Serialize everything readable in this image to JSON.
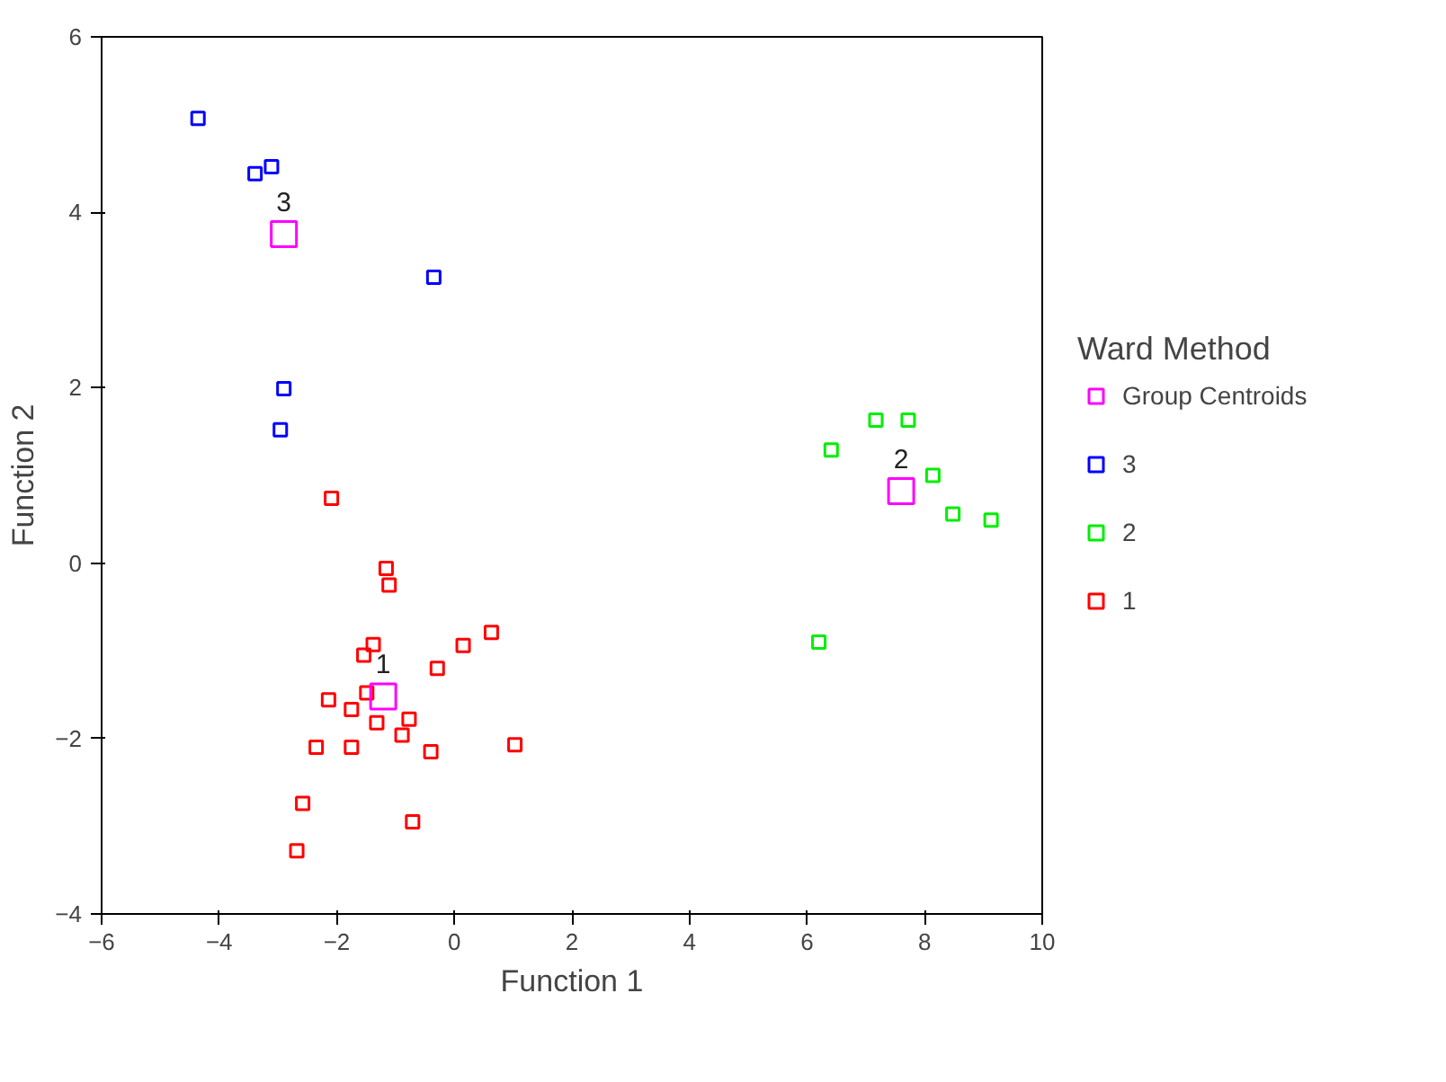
{
  "chart_data": {
    "type": "scatter",
    "xlabel": "Function 1",
    "ylabel": "Function 2",
    "legend_title": "Ward Method",
    "legend": "right",
    "grid": false,
    "marker": "square",
    "xlim": [
      -6,
      10
    ],
    "xticks": [
      -6,
      -4,
      -2,
      0,
      2,
      4,
      6,
      8,
      10
    ],
    "ylim": [
      -4,
      6
    ],
    "yticks": [
      -4,
      -2,
      0,
      2,
      4,
      6
    ],
    "series": [
      {
        "name": "Group Centroids",
        "color": "#ff00ff",
        "x": [
          -1.21,
          7.6,
          -2.9
        ],
        "values": [
          -1.52,
          0.82,
          3.75
        ]
      },
      {
        "name": "3",
        "color": "#0000ff",
        "x": [
          -4.36,
          -3.39,
          -3.11,
          -0.35,
          -2.9,
          -2.96
        ],
        "values": [
          5.07,
          4.44,
          4.52,
          3.26,
          1.99,
          1.52
        ]
      },
      {
        "name": "2",
        "color": "#00ee00",
        "x": [
          7.17,
          7.72,
          6.41,
          8.14,
          8.48,
          9.13,
          6.2
        ],
        "values": [
          1.63,
          1.63,
          1.29,
          1.0,
          0.56,
          0.49,
          -0.9
        ]
      },
      {
        "name": "1",
        "color": "#ff0000",
        "x": [
          -2.09,
          -1.16,
          -1.11,
          -1.38,
          -1.54,
          0.63,
          0.15,
          -0.29,
          -2.14,
          -1.49,
          -1.75,
          -1.32,
          -0.77,
          -0.89,
          -2.35,
          -1.75,
          -0.4,
          1.03,
          -2.58,
          -0.71,
          -2.68
        ],
        "values": [
          0.74,
          -0.06,
          -0.25,
          -0.93,
          -1.05,
          -0.79,
          -0.94,
          -1.2,
          -1.56,
          -1.48,
          -1.67,
          -1.82,
          -1.78,
          -1.96,
          -2.1,
          -2.1,
          -2.15,
          -2.07,
          -2.74,
          -2.95,
          -3.28
        ]
      }
    ],
    "annotations": [
      {
        "text": "1",
        "x": -1.21,
        "y": -1.52
      },
      {
        "text": "2",
        "x": 7.6,
        "y": 0.82
      },
      {
        "text": "3",
        "x": -2.9,
        "y": 3.75
      }
    ]
  }
}
